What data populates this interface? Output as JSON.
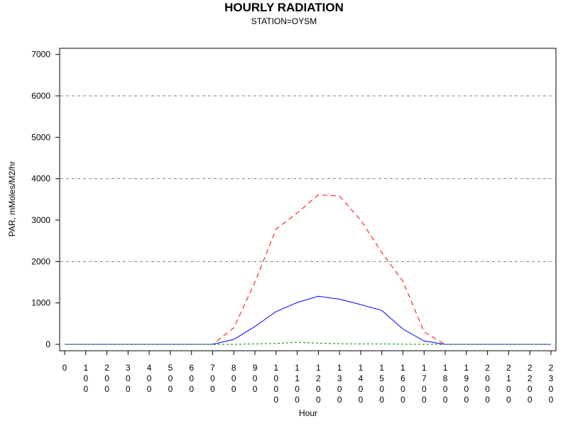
{
  "chart_data": {
    "type": "line",
    "title": "HOURLY RADIATION",
    "subtitle": "STATION=OYSM",
    "xlabel": "Hour",
    "ylabel": "PAR, mMoles/M2/hr",
    "ylim": [
      0,
      7000
    ],
    "yticks": [
      0,
      1000,
      2000,
      3000,
      4000,
      5000,
      6000,
      7000
    ],
    "grid": "horizontal dashed at 2000, 4000, 6000",
    "legend": "none",
    "x": [
      0,
      100,
      200,
      300,
      400,
      500,
      600,
      700,
      800,
      900,
      1000,
      1100,
      1200,
      1300,
      1400,
      1500,
      1600,
      1700,
      1800,
      1900,
      2000,
      2100,
      2200,
      2300
    ],
    "x_tick_labels": [
      "0",
      "100",
      "200",
      "300",
      "400",
      "500",
      "600",
      "700",
      "800",
      "900",
      "1000",
      "1100",
      "1200",
      "1300",
      "1400",
      "1500",
      "1600",
      "1700",
      "1800",
      "1900",
      "2000",
      "2100",
      "2200",
      "2300"
    ],
    "series": [
      {
        "color": "#ff0000",
        "style": "dashed",
        "values": [
          0,
          0,
          0,
          0,
          0,
          0,
          0,
          0,
          400,
          1500,
          2780,
          3170,
          3610,
          3580,
          3000,
          2220,
          1520,
          300,
          0,
          0,
          0,
          0,
          0,
          0
        ]
      },
      {
        "color": "#0000ff",
        "style": "solid",
        "values": [
          0,
          0,
          0,
          0,
          0,
          0,
          0,
          0,
          120,
          430,
          790,
          1010,
          1160,
          1090,
          960,
          820,
          370,
          80,
          0,
          0,
          0,
          0,
          0,
          0
        ]
      },
      {
        "color": "#008000",
        "style": "dotted",
        "values": [
          0,
          0,
          0,
          0,
          0,
          0,
          0,
          0,
          0,
          10,
          20,
          50,
          30,
          15,
          10,
          10,
          5,
          0,
          0,
          0,
          0,
          0,
          0,
          0
        ]
      }
    ]
  }
}
